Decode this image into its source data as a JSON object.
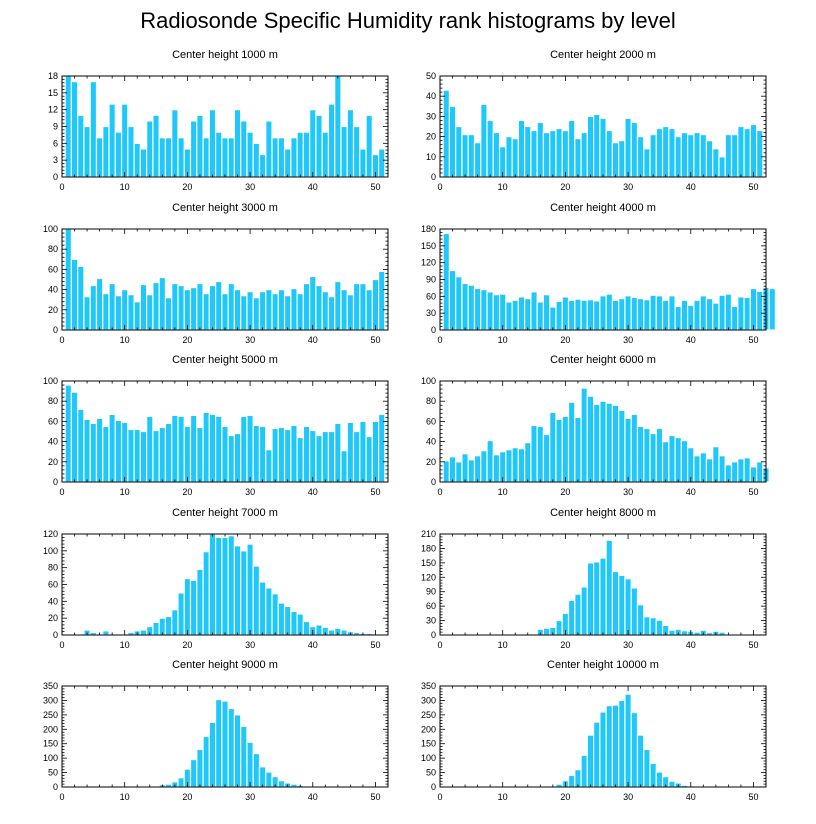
{
  "title": "Radiosonde Specific Humidity rank histograms by level",
  "colors": {
    "bar": "#1EC8FA",
    "bar_edge": "#ffffff",
    "axis": "#000000"
  },
  "chart_data": [
    {
      "type": "bar",
      "title": "Center height 1000 m",
      "xlim": [
        0,
        52
      ],
      "ylim": [
        0,
        18
      ],
      "xticks": [
        0,
        10,
        20,
        30,
        40,
        50
      ],
      "yticks": [
        0,
        3,
        6,
        9,
        12,
        15,
        18
      ],
      "values": [
        18,
        17,
        11,
        9,
        17,
        7,
        9,
        13,
        8,
        13,
        9,
        6,
        5,
        10,
        11,
        7,
        7,
        12,
        7,
        5,
        10,
        11,
        7,
        12,
        8,
        7,
        7,
        12,
        10,
        8,
        6,
        4,
        10,
        7,
        7,
        5,
        7,
        8,
        8,
        12,
        11,
        8,
        13,
        18,
        9,
        12,
        9,
        5,
        11,
        4,
        5
      ]
    },
    {
      "type": "bar",
      "title": "Center height 2000 m",
      "xlim": [
        0,
        52
      ],
      "ylim": [
        0,
        50
      ],
      "xticks": [
        0,
        10,
        20,
        30,
        40,
        50
      ],
      "yticks": [
        0,
        10,
        20,
        30,
        40,
        50
      ],
      "values": [
        43,
        35,
        25,
        21,
        21,
        17,
        36,
        28,
        22,
        15,
        20,
        19,
        28,
        25,
        23,
        27,
        22,
        23,
        24,
        23,
        28,
        19,
        22,
        30,
        31,
        29,
        23,
        17,
        18,
        29,
        27,
        20,
        14,
        21,
        24,
        25,
        24,
        20,
        22,
        21,
        22,
        21,
        18,
        14,
        10,
        21,
        21,
        25,
        24,
        26,
        23
      ]
    },
    {
      "type": "bar",
      "title": "Center height 3000 m",
      "xlim": [
        0,
        52
      ],
      "ylim": [
        0,
        100
      ],
      "xticks": [
        0,
        10,
        20,
        30,
        40,
        50
      ],
      "yticks": [
        0,
        20,
        40,
        60,
        80,
        100
      ],
      "values": [
        100,
        70,
        63,
        33,
        44,
        51,
        36,
        46,
        34,
        40,
        35,
        28,
        45,
        35,
        47,
        52,
        32,
        46,
        44,
        40,
        42,
        46,
        36,
        44,
        48,
        36,
        46,
        40,
        34,
        38,
        32,
        38,
        40,
        36,
        40,
        34,
        41,
        36,
        46,
        53,
        44,
        38,
        33,
        48,
        40,
        35,
        46,
        46,
        40,
        50,
        58
      ]
    },
    {
      "type": "bar",
      "title": "Center height 4000 m",
      "xlim": [
        0,
        52
      ],
      "ylim": [
        0,
        180
      ],
      "xticks": [
        0,
        10,
        20,
        30,
        40,
        50
      ],
      "yticks": [
        0,
        30,
        60,
        90,
        120,
        150,
        180
      ],
      "values": [
        172,
        106,
        95,
        83,
        80,
        74,
        72,
        68,
        63,
        64,
        50,
        53,
        59,
        56,
        68,
        50,
        63,
        41,
        51,
        59,
        53,
        55,
        53,
        54,
        52,
        61,
        64,
        53,
        56,
        61,
        58,
        56,
        54,
        62,
        61,
        53,
        61,
        42,
        53,
        44,
        53,
        61,
        56,
        48,
        62,
        64,
        42,
        59,
        58,
        74,
        69,
        76,
        74
      ]
    },
    {
      "type": "bar",
      "title": "Center height 5000 m",
      "xlim": [
        0,
        52
      ],
      "ylim": [
        0,
        100
      ],
      "xticks": [
        0,
        10,
        20,
        30,
        40,
        50
      ],
      "yticks": [
        0,
        20,
        40,
        60,
        80,
        100
      ],
      "values": [
        96,
        89,
        72,
        62,
        58,
        63,
        55,
        67,
        61,
        59,
        52,
        52,
        50,
        65,
        51,
        54,
        58,
        66,
        65,
        55,
        66,
        54,
        69,
        67,
        65,
        55,
        46,
        48,
        65,
        66,
        56,
        55,
        32,
        53,
        54,
        52,
        56,
        44,
        55,
        51,
        46,
        50,
        50,
        58,
        31,
        59,
        50,
        60,
        45,
        60,
        67
      ]
    },
    {
      "type": "bar",
      "title": "Center height 6000 m",
      "xlim": [
        0,
        52
      ],
      "ylim": [
        0,
        100
      ],
      "xticks": [
        0,
        10,
        20,
        30,
        40,
        50
      ],
      "yticks": [
        0,
        20,
        40,
        60,
        80,
        100
      ],
      "values": [
        21,
        25,
        20,
        28,
        22,
        26,
        31,
        41,
        27,
        30,
        32,
        34,
        33,
        39,
        56,
        55,
        47,
        69,
        62,
        65,
        79,
        64,
        93,
        85,
        77,
        80,
        78,
        76,
        71,
        63,
        67,
        55,
        53,
        48,
        53,
        40,
        46,
        44,
        41,
        34,
        26,
        29,
        23,
        35,
        26,
        17,
        20,
        23,
        24,
        15,
        20,
        14
      ]
    },
    {
      "type": "bar",
      "title": "Center height 7000 m",
      "xlim": [
        0,
        52
      ],
      "ylim": [
        0,
        120
      ],
      "xticks": [
        0,
        10,
        20,
        30,
        40,
        50
      ],
      "yticks": [
        0,
        20,
        40,
        60,
        80,
        100,
        120
      ],
      "values": [
        0,
        1,
        1,
        6,
        3,
        0,
        5,
        1,
        0,
        0,
        3,
        5,
        6,
        10,
        15,
        20,
        22,
        30,
        50,
        67,
        65,
        78,
        99,
        120,
        116,
        116,
        118,
        106,
        100,
        108,
        82,
        63,
        56,
        49,
        38,
        34,
        28,
        25,
        16,
        10,
        12,
        9,
        6,
        8,
        6,
        4,
        3,
        2,
        2,
        1,
        0
      ]
    },
    {
      "type": "bar",
      "title": "Center height 8000 m",
      "xlim": [
        0,
        52
      ],
      "ylim": [
        0,
        210
      ],
      "xticks": [
        0,
        10,
        20,
        30,
        40,
        50
      ],
      "yticks": [
        0,
        30,
        60,
        90,
        120,
        150,
        180,
        210
      ],
      "values": [
        0,
        0,
        0,
        0,
        0,
        0,
        0,
        0,
        0,
        0,
        0,
        0,
        0,
        0,
        0,
        12,
        14,
        16,
        30,
        45,
        72,
        85,
        100,
        150,
        152,
        160,
        197,
        132,
        124,
        117,
        98,
        63,
        38,
        36,
        31,
        20,
        10,
        12,
        9,
        8,
        6,
        10,
        5,
        8,
        6,
        2,
        1,
        0,
        0,
        0,
        0,
        0
      ]
    },
    {
      "type": "bar",
      "title": "Center height 9000 m",
      "xlim": [
        0,
        52
      ],
      "ylim": [
        0,
        350
      ],
      "xticks": [
        0,
        10,
        20,
        30,
        40,
        50
      ],
      "yticks": [
        0,
        50,
        100,
        150,
        200,
        250,
        300,
        350
      ],
      "values": [
        0,
        0,
        0,
        0,
        0,
        0,
        0,
        0,
        0,
        0,
        0,
        0,
        0,
        0,
        0,
        8,
        10,
        18,
        32,
        62,
        95,
        130,
        175,
        224,
        303,
        298,
        272,
        250,
        210,
        155,
        116,
        70,
        52,
        36,
        22,
        14,
        10,
        6,
        4,
        3,
        2,
        1,
        0,
        0,
        0,
        0,
        0,
        0,
        0,
        0,
        0
      ]
    },
    {
      "type": "bar",
      "title": "Center height 10000 m",
      "xlim": [
        0,
        52
      ],
      "ylim": [
        0,
        350
      ],
      "xticks": [
        0,
        10,
        20,
        30,
        40,
        50
      ],
      "yticks": [
        0,
        50,
        100,
        150,
        200,
        250,
        300,
        350
      ],
      "values": [
        0,
        0,
        0,
        0,
        0,
        0,
        0,
        0,
        0,
        0,
        0,
        0,
        0,
        0,
        0,
        0,
        0,
        4,
        10,
        22,
        40,
        60,
        110,
        180,
        225,
        260,
        282,
        284,
        300,
        322,
        258,
        180,
        130,
        82,
        52,
        36,
        20,
        14,
        6,
        4,
        2,
        1,
        0,
        0,
        0,
        0,
        0,
        0,
        0,
        0,
        0
      ]
    }
  ]
}
